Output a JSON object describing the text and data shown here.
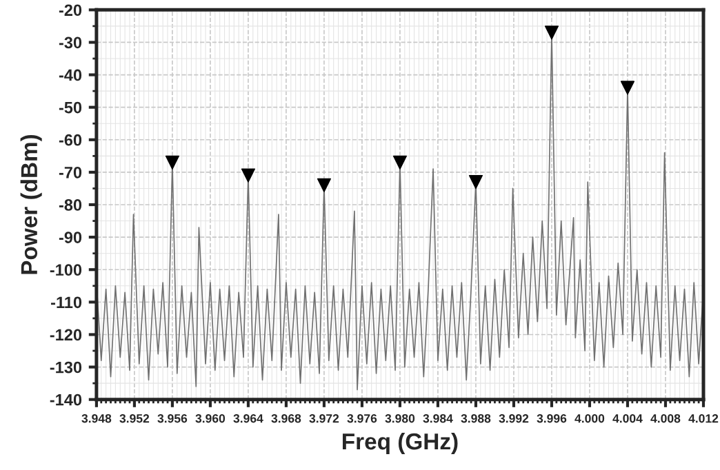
{
  "chart_data": {
    "type": "line",
    "xlabel": "Freq (GHz)",
    "ylabel": "Power (dBm)",
    "xlim": [
      3.948,
      4.012
    ],
    "xticks": [
      3.948,
      3.952,
      3.956,
      {
        "value": 3.96,
        "label": "3.960"
      },
      3.964,
      3.968,
      3.972,
      3.976,
      {
        "value": 3.98,
        "label": "3.980"
      },
      3.984,
      3.988,
      3.992,
      3.996,
      {
        "value": 4.0,
        "label": "4.000"
      },
      4.004,
      4.008,
      4.012
    ],
    "ylim": [
      -140,
      -20
    ],
    "yticks": [
      -140,
      -130,
      -120,
      -110,
      -100,
      -90,
      -80,
      -70,
      -60,
      -50,
      -40,
      -30,
      -20
    ],
    "grid": true,
    "legend": false,
    "series": [
      {
        "color": "#707070",
        "marker": "none",
        "line_style": "solid",
        "x": [
          3.948,
          3.9485,
          3.949,
          3.9495,
          3.95,
          3.9505,
          3.951,
          3.9515,
          3.9519,
          3.9525,
          3.953,
          3.9535,
          3.954,
          3.9545,
          3.955,
          3.9555,
          3.956,
          3.9565,
          3.957,
          3.9575,
          3.958,
          3.9585,
          3.9588,
          3.9595,
          3.96,
          3.9605,
          3.961,
          3.9615,
          3.962,
          3.9625,
          3.963,
          3.9635,
          3.964,
          3.9645,
          3.965,
          3.9655,
          3.966,
          3.9665,
          3.9672,
          3.9675,
          3.968,
          3.9685,
          3.969,
          3.9695,
          3.97,
          3.9705,
          3.971,
          3.9715,
          3.972,
          3.9725,
          3.973,
          3.9735,
          3.974,
          3.9745,
          3.9752,
          3.9755,
          3.976,
          3.9765,
          3.977,
          3.9775,
          3.978,
          3.9785,
          3.979,
          3.9795,
          3.98,
          3.9805,
          3.981,
          3.9815,
          3.982,
          3.9825,
          3.983,
          3.9835,
          3.984,
          3.9845,
          3.985,
          3.9855,
          3.986,
          3.9865,
          3.987,
          3.9875,
          3.988,
          3.9885,
          3.989,
          3.9895,
          3.99,
          3.9905,
          3.991,
          3.9915,
          3.9919,
          3.9925,
          3.993,
          3.9935,
          3.994,
          3.9945,
          3.995,
          3.9955,
          3.996,
          3.9965,
          3.997,
          3.9975,
          3.9983,
          3.9985,
          3.999,
          3.9995,
          3.9998,
          4.0005,
          4.001,
          4.0015,
          4.002,
          4.0025,
          4.003,
          4.0035,
          4.004,
          4.0045,
          4.005,
          4.0055,
          4.006,
          4.0065,
          4.007,
          4.0075,
          4.0079,
          4.0085,
          4.009,
          4.0095,
          4.01,
          4.0105,
          4.011,
          4.0115,
          4.012
        ],
        "values": [
          -104,
          -128,
          -106,
          -133,
          -105,
          -127,
          -107,
          -131,
          -83,
          -129,
          -105,
          -134,
          -106,
          -126,
          -104,
          -130,
          -67,
          -132,
          -105,
          -127,
          -107,
          -136,
          -87,
          -129,
          -104,
          -131,
          -106,
          -128,
          -105,
          -133,
          -107,
          -127,
          -71,
          -130,
          -105,
          -134,
          -106,
          -128,
          -83,
          -131,
          -104,
          -127,
          -106,
          -135,
          -105,
          -129,
          -107,
          -132,
          -74,
          -128,
          -105,
          -131,
          -106,
          -127,
          -82,
          -137,
          -105,
          -129,
          -104,
          -132,
          -106,
          -128,
          -105,
          -131,
          -67,
          -130,
          -106,
          -127,
          -104,
          -133,
          -105,
          -69,
          -128,
          -106,
          -131,
          -105,
          -127,
          -104,
          -134,
          -106,
          -73,
          -129,
          -105,
          -131,
          -103,
          -127,
          -100,
          -124,
          -75,
          -121,
          -95,
          -120,
          -90,
          -116,
          -85,
          -112,
          -27,
          -114,
          -85,
          -117,
          -84,
          -121,
          -97,
          -125,
          -73,
          -128,
          -104,
          -130,
          -102,
          -124,
          -98,
          -120,
          -44,
          -122,
          -100,
          -126,
          -104,
          -130,
          -105,
          -127,
          -64,
          -131,
          -105,
          -128,
          -106,
          -133,
          -104,
          -129,
          -106
        ]
      },
      {
        "type": "scatter",
        "color": "#000000",
        "marker": "triangle",
        "x": [
          3.956,
          3.964,
          3.972,
          3.98,
          3.988,
          3.996,
          4.004
        ],
        "values": [
          -67,
          -71,
          -74,
          -67,
          -73,
          -27,
          -44
        ]
      }
    ]
  }
}
